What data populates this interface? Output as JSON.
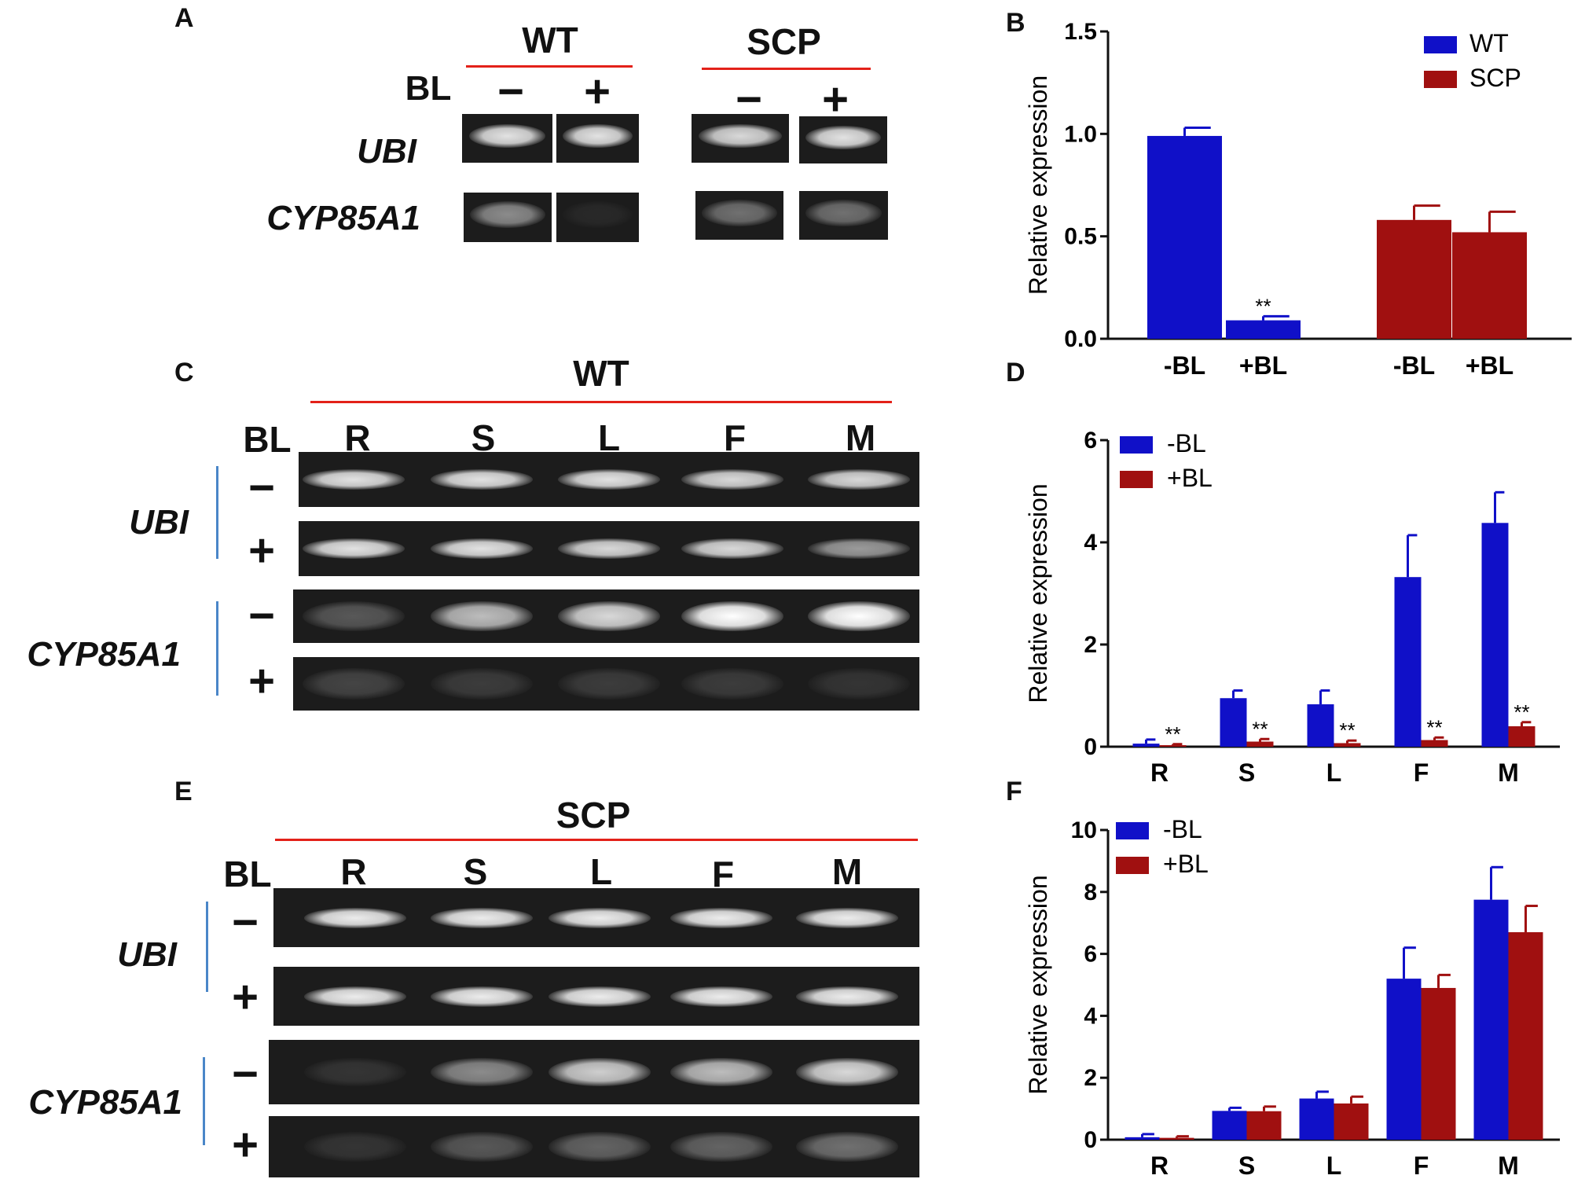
{
  "panels": {
    "A": {
      "label": "A",
      "treatment_label": "BL",
      "groups": [
        "WT",
        "SCP"
      ],
      "minus": "−",
      "plus": "+",
      "genes": [
        "UBI",
        "CYP85A1"
      ],
      "gel_intensity": {
        "UBI": [
          0.85,
          0.85,
          0.8,
          0.85
        ],
        "CYP85A1": [
          0.55,
          0.05,
          0.45,
          0.45
        ]
      }
    },
    "C": {
      "label": "C",
      "group": "WT",
      "treatment_label": "BL",
      "lanes": [
        "R",
        "S",
        "L",
        "F",
        "M"
      ],
      "minus": "−",
      "plus": "+",
      "genes": [
        "UBI",
        "CYP85A1"
      ],
      "gel_intensity": {
        "UBI_minus": [
          0.85,
          0.85,
          0.85,
          0.8,
          0.8
        ],
        "UBI_plus": [
          0.85,
          0.85,
          0.8,
          0.8,
          0.6
        ],
        "CYP_minus": [
          0.35,
          0.7,
          0.8,
          1.0,
          1.0
        ],
        "CYP_plus": [
          0.25,
          0.2,
          0.2,
          0.2,
          0.15
        ]
      }
    },
    "E": {
      "label": "E",
      "group": "SCP",
      "treatment_label": "BL",
      "lanes": [
        "R",
        "S",
        "L",
        "F",
        "M"
      ],
      "minus": "−",
      "plus": "+",
      "genes": [
        "UBI",
        "CYP85A1"
      ],
      "gel_intensity": {
        "UBI_minus": [
          0.9,
          0.9,
          0.9,
          0.9,
          0.9
        ],
        "UBI_plus": [
          0.9,
          0.9,
          0.9,
          0.9,
          0.9
        ],
        "CYP_minus": [
          0.15,
          0.55,
          0.75,
          0.7,
          0.8
        ],
        "CYP_plus": [
          0.15,
          0.35,
          0.4,
          0.4,
          0.45
        ]
      }
    }
  },
  "chart_data": [
    {
      "panel": "B",
      "type": "bar",
      "ylabel": "Relative expression",
      "ylim": [
        0,
        1.5
      ],
      "yticks": [
        "0.0",
        "0.5",
        "1.0",
        "1.5"
      ],
      "legend": [
        "WT",
        "SCP"
      ],
      "legend_position": "top-right",
      "colors": [
        "#1010c8",
        "#a01010"
      ],
      "bars": [
        {
          "group": "WT",
          "label": "-BL",
          "value": 0.99,
          "err": 0.04,
          "sig": ""
        },
        {
          "group": "WT",
          "label": "+BL",
          "value": 0.09,
          "err": 0.02,
          "sig": "**"
        },
        {
          "group": "SCP",
          "label": "-BL",
          "value": 0.58,
          "err": 0.07,
          "sig": ""
        },
        {
          "group": "SCP",
          "label": "+BL",
          "value": 0.52,
          "err": 0.1,
          "sig": ""
        }
      ]
    },
    {
      "panel": "D",
      "type": "bar",
      "ylabel": "Relative expression",
      "ylim": [
        0,
        6
      ],
      "yticks": [
        "0",
        "2",
        "4",
        "6"
      ],
      "categories": [
        "R",
        "S",
        "L",
        "F",
        "M"
      ],
      "legend_position": "top-left",
      "series": [
        {
          "name": "-BL",
          "color": "#1010c8",
          "values": [
            0.06,
            0.95,
            0.83,
            3.32,
            4.38
          ],
          "err": [
            0.08,
            0.15,
            0.27,
            0.82,
            0.6
          ]
        },
        {
          "name": "+BL",
          "color": "#a01010",
          "values": [
            0.03,
            0.1,
            0.07,
            0.13,
            0.4
          ],
          "err": [
            0.02,
            0.05,
            0.05,
            0.05,
            0.08
          ],
          "sig": [
            "**",
            "**",
            "**",
            "**",
            "**"
          ]
        }
      ]
    },
    {
      "panel": "F",
      "type": "bar",
      "ylabel": "Relative expression",
      "ylim": [
        0,
        10
      ],
      "yticks": [
        "0",
        "2",
        "4",
        "6",
        "8",
        "10"
      ],
      "categories": [
        "R",
        "S",
        "L",
        "F",
        "M"
      ],
      "legend_position": "top-left",
      "series": [
        {
          "name": "-BL",
          "color": "#1010c8",
          "values": [
            0.08,
            0.93,
            1.33,
            5.2,
            7.75
          ],
          "err": [
            0.1,
            0.1,
            0.22,
            1.0,
            1.05
          ]
        },
        {
          "name": "+BL",
          "color": "#a01010",
          "values": [
            0.06,
            0.92,
            1.17,
            4.9,
            6.7
          ],
          "err": [
            0.05,
            0.15,
            0.22,
            0.42,
            0.85
          ]
        }
      ]
    }
  ]
}
